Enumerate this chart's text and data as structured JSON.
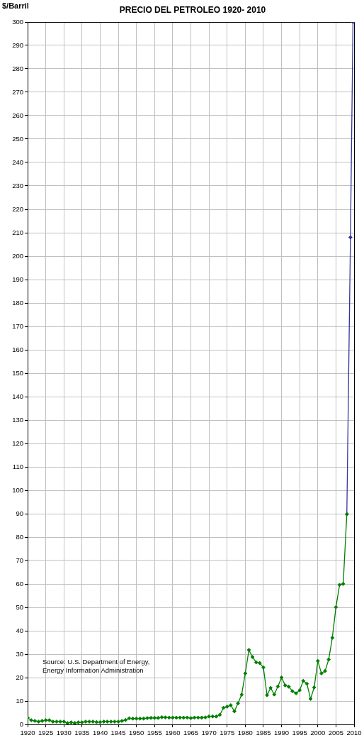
{
  "chart_data": {
    "type": "line",
    "title": "PRECIO DEL PETROLEO 1920- 2010",
    "ylabel": "$/Barril",
    "annotations": [
      "Source: U.S. Department of Energy, Energy Information Administration"
    ],
    "series": [
      {
        "color": "#008000",
        "x": [
          1920,
          1921,
          1922,
          1923,
          1924,
          1925,
          1926,
          1927,
          1928,
          1929,
          1930,
          1931,
          1932,
          1933,
          1934,
          1935,
          1936,
          1937,
          1938,
          1939,
          1940,
          1941,
          1942,
          1943,
          1944,
          1945,
          1946,
          1947,
          1948,
          1949,
          1950,
          1951,
          1952,
          1953,
          1954,
          1955,
          1956,
          1957,
          1958,
          1959,
          1960,
          1961,
          1962,
          1963,
          1964,
          1965,
          1966,
          1967,
          1968,
          1969,
          1970,
          1971,
          1972,
          1973,
          1974,
          1975,
          1976,
          1977,
          1978,
          1979,
          1980,
          1981,
          1982,
          1983,
          1984,
          1985,
          1986,
          1987,
          1988,
          1989,
          1990,
          1991,
          1992,
          1993,
          1994,
          1995,
          1996,
          1997,
          1998,
          1999,
          2000,
          2001,
          2002,
          2003,
          2004,
          2005,
          2006,
          2007,
          2008
        ],
        "values": [
          2.9,
          1.8,
          1.5,
          1.2,
          1.5,
          1.8,
          1.8,
          1.2,
          1.2,
          1.2,
          1.2,
          0.6,
          0.9,
          0.6,
          0.9,
          0.9,
          1.2,
          1.2,
          1.2,
          1.0,
          1.0,
          1.2,
          1.2,
          1.2,
          1.2,
          1.2,
          1.5,
          1.9,
          2.6,
          2.5,
          2.5,
          2.5,
          2.5,
          2.7,
          2.8,
          2.8,
          2.8,
          3.1,
          3.0,
          2.9,
          2.9,
          2.9,
          2.9,
          2.9,
          2.9,
          2.7,
          2.9,
          2.9,
          2.9,
          3.0,
          3.4,
          3.4,
          3.4,
          4.1,
          7.1,
          7.6,
          8.2,
          5.6,
          9.0,
          12.7,
          21.8,
          31.8,
          28.8,
          26.5,
          26.2,
          24.3,
          12.5,
          15.6,
          12.8,
          16.2,
          20.0,
          16.7,
          16.1,
          14.2,
          13.3,
          14.6,
          18.6,
          17.4,
          10.9,
          15.8,
          27.1,
          21.8,
          22.8,
          27.7,
          37.0,
          50.1,
          59.6,
          60.0,
          89.8
        ]
      },
      {
        "color": "#333399",
        "x": [
          2008,
          2009,
          2009.7
        ],
        "values": [
          89.8,
          208,
          300
        ]
      }
    ],
    "xlim": [
      1920,
      2010
    ],
    "xticks": [
      1920,
      1925,
      1930,
      1935,
      1940,
      1945,
      1950,
      1955,
      1960,
      1965,
      1970,
      1975,
      1980,
      1985,
      1990,
      1995,
      2000,
      2005,
      2010
    ],
    "ylim": [
      0,
      300
    ],
    "yticks": [
      0,
      10,
      20,
      30,
      40,
      50,
      60,
      70,
      80,
      90,
      100,
      110,
      120,
      130,
      140,
      150,
      160,
      170,
      180,
      190,
      200,
      210,
      220,
      230,
      240,
      250,
      260,
      270,
      280,
      290,
      300
    ],
    "grid": true,
    "marker": "diamond",
    "line_style": "solid"
  }
}
